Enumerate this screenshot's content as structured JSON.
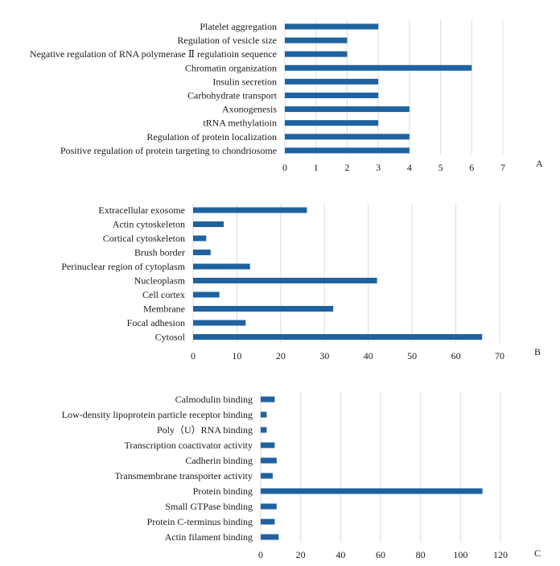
{
  "colors": {
    "bar": "#1f62a0",
    "grid": "#dcdcdc",
    "text": "#1a1a1a"
  },
  "chart_data": [
    {
      "type": "bar",
      "orientation": "horizontal",
      "panel_label": "A",
      "categories": [
        "Platelet aggregation",
        "Regulation of vesicle size",
        "Negative regulation of RNA polymerase Ⅱ regulatioin sequence",
        "Chromatin organization",
        "Insulin secretion",
        "Carbohydrate transport",
        "Axonogenesis",
        "tRNA methylatioin",
        "Regulation of protein localization",
        "Positive regulation of protein targeting to chondriosome"
      ],
      "values": [
        3,
        2,
        2,
        6,
        3,
        3,
        4,
        3,
        4,
        4
      ],
      "xlim": [
        0,
        7
      ],
      "ticks": [
        "0",
        "1",
        "2",
        "3",
        "4",
        "5",
        "6",
        "7"
      ],
      "grid": true
    },
    {
      "type": "bar",
      "orientation": "horizontal",
      "panel_label": "B",
      "categories": [
        "Extracellular exosome",
        "Actin cytoskeleton",
        "Cortical cytoskeleton",
        "Brush border",
        "Perinuclear region of cytoplasm",
        "Nucleoplasm",
        "Cell cortex",
        "Membrane",
        "Focal adhesion",
        "Cytosol"
      ],
      "values": [
        26,
        7,
        3,
        4,
        13,
        42,
        6,
        32,
        12,
        66
      ],
      "xlim": [
        0,
        70
      ],
      "ticks": [
        "0",
        "10",
        "20",
        "30",
        "40",
        "50",
        "60",
        "70"
      ],
      "grid": true
    },
    {
      "type": "bar",
      "orientation": "horizontal",
      "panel_label": "C",
      "categories": [
        "Calmodulin binding",
        "Low-density lipoprotein particle receptor binding",
        "Poly（U）RNA binding",
        "Transcription coactivator activity",
        "Cadherin binding",
        "Transmembrane transporter activity",
        "Protein binding",
        "Small GTPase binding",
        "Protein C-terminus binding",
        "Actin filament binding"
      ],
      "values": [
        7,
        3,
        3,
        7,
        8,
        6,
        111,
        8,
        7,
        9
      ],
      "xlim": [
        0,
        120
      ],
      "ticks": [
        "0",
        "20",
        "40",
        "60",
        "80",
        "100",
        "120"
      ],
      "grid": true
    }
  ]
}
